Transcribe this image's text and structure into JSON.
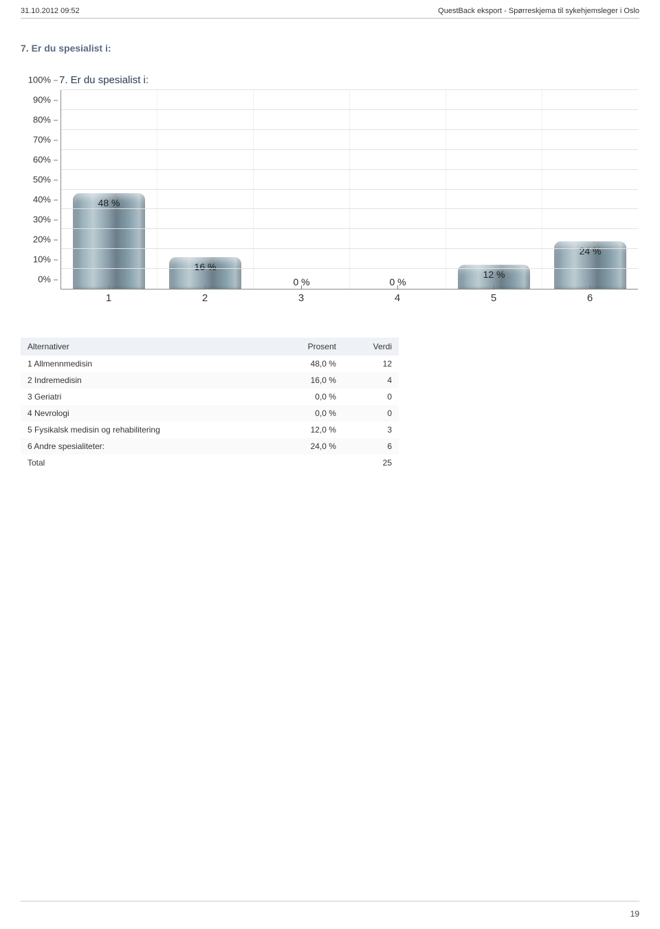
{
  "header": {
    "left": "31.10.2012 09:52",
    "right": "QuestBack eksport - Spørreskjema til sykehjemsleger i Oslo"
  },
  "section": {
    "title": "7. Er du spesialist i:"
  },
  "chart": {
    "type": "bar",
    "title": "7. Er du spesialist i:",
    "y_ticks": [
      "0%",
      "10%",
      "20%",
      "30%",
      "40%",
      "50%",
      "60%",
      "70%",
      "80%",
      "90%",
      "100%"
    ],
    "ymax": 100,
    "categories": [
      "1",
      "2",
      "3",
      "4",
      "5",
      "6"
    ],
    "values": [
      48,
      16,
      0,
      0,
      12,
      24
    ],
    "bar_labels": [
      "48 %",
      "16 %",
      "0 %",
      "0 %",
      "12 %",
      "24 %"
    ],
    "bar_color_gradient": [
      "#70838f",
      "#bcccd3",
      "#6b7e89"
    ],
    "grid_color": "#e2e2e2",
    "title_color": "#2a3a50",
    "title_fontsize": 15,
    "label_fontsize": 14
  },
  "table": {
    "columns": [
      "Alternativer",
      "Prosent",
      "Verdi"
    ],
    "rows": [
      {
        "label": "1 Allmennmedisin",
        "prosent": "48,0 %",
        "verdi": "12"
      },
      {
        "label": "2 Indremedisin",
        "prosent": "16,0 %",
        "verdi": "4"
      },
      {
        "label": "3 Geriatri",
        "prosent": "0,0 %",
        "verdi": "0"
      },
      {
        "label": "4 Nevrologi",
        "prosent": "0,0 %",
        "verdi": "0"
      },
      {
        "label": "5 Fysikalsk medisin og rehabilitering",
        "prosent": "12,0 %",
        "verdi": "3"
      },
      {
        "label": "6 Andre spesialiteter:",
        "prosent": "24,0 %",
        "verdi": "6"
      },
      {
        "label": "Total",
        "prosent": "",
        "verdi": "25"
      }
    ]
  },
  "page_number": "19"
}
